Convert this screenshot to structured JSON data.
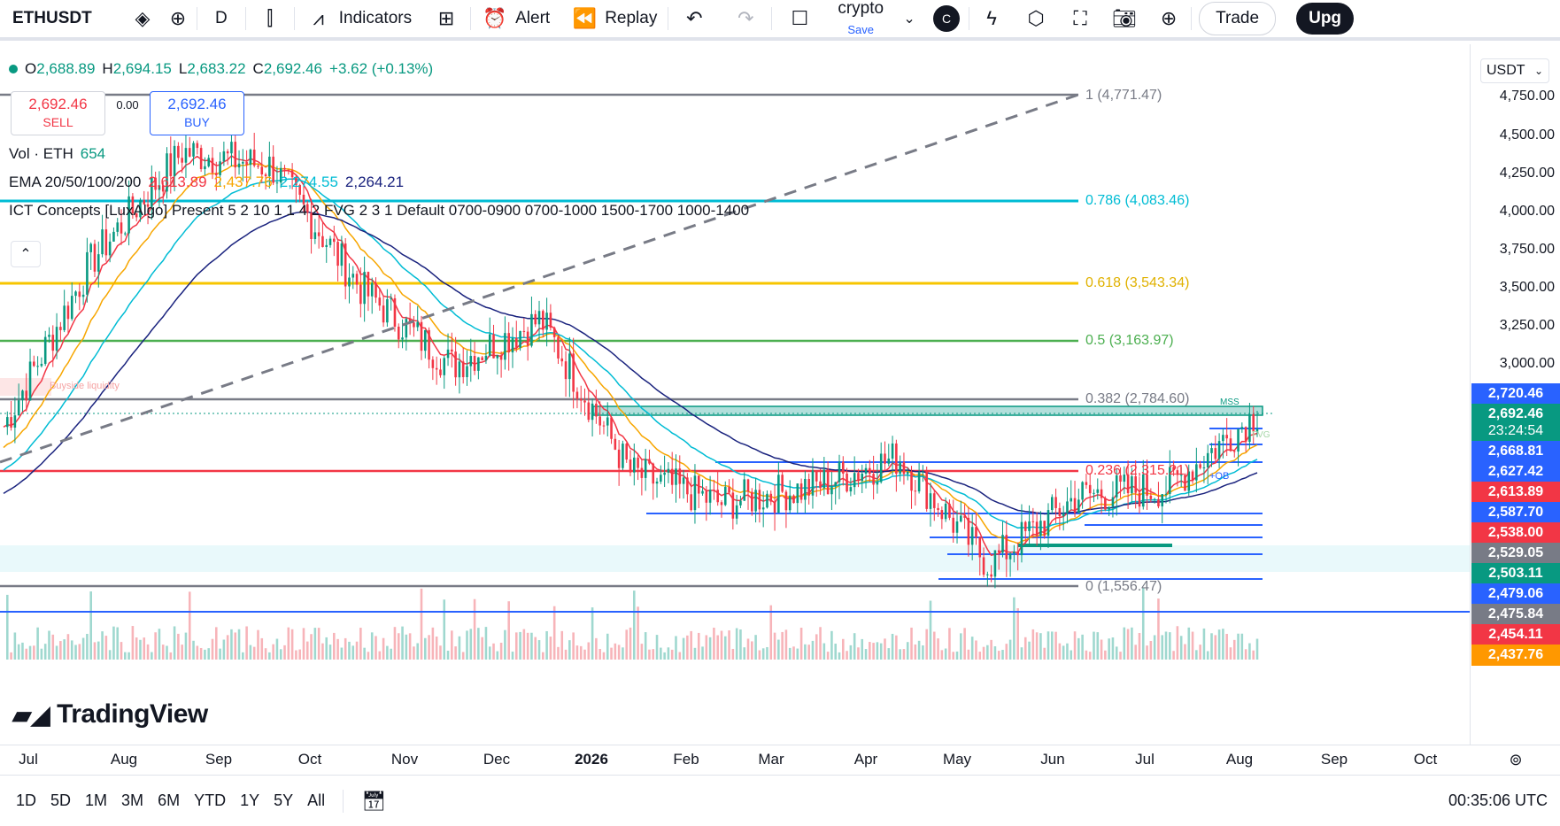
{
  "toolbar": {
    "symbol": "ETHUSDT",
    "interval": "D",
    "indicators_label": "Indicators",
    "alert_label": "Alert",
    "replay_label": "Replay",
    "layout_name": "crypto",
    "layout_save": "Save",
    "avatar_letter": "C",
    "trade_label": "Trade",
    "upgrade_label": "Upg"
  },
  "legend": {
    "ohlc": {
      "o_label": "O",
      "o": "2,688.89",
      "h_label": "H",
      "h": "2,694.15",
      "l_label": "L",
      "l": "2,683.22",
      "c_label": "C",
      "c": "2,692.46",
      "change": "+3.62 (+0.13%)"
    },
    "volume_label": "Vol · ETH",
    "volume_value": "654",
    "ema_label": "EMA 20/50/100/200",
    "ema_values": [
      "2,613.89",
      "2,437.76",
      "2,274.55",
      "2,264.21"
    ],
    "ema_colors": [
      "#f23645",
      "#f7a600",
      "#00bcd4",
      "#1a237e"
    ],
    "ict_label": "ICT Concepts [LuxAlgo] Present 5 2 10 1 1 4 2 FVG 2 3 1 Default 0700-0900 0700-1000 1500-1700 1000-1400"
  },
  "trade_panel": {
    "sell_price": "2,692.46",
    "sell_label": "SELL",
    "spread": "0.00",
    "buy_price": "2,692.46",
    "buy_label": "BUY"
  },
  "currency": "USDT",
  "price_axis": [
    "4,750.00",
    "4,500.00",
    "4,250.00",
    "4,000.00",
    "3,750.00",
    "3,500.00",
    "3,250.00",
    "3,000.00"
  ],
  "price_tags": [
    {
      "value": "2,720.46",
      "color": "#2962ff"
    },
    {
      "value": "2,692.46",
      "color": "#089981"
    },
    {
      "value": "23:24:54",
      "color": "#089981"
    },
    {
      "value": "2,668.81",
      "color": "#2962ff"
    },
    {
      "value": "2,627.42",
      "color": "#2962ff"
    },
    {
      "value": "2,613.89",
      "color": "#f23645"
    },
    {
      "value": "2,587.70",
      "color": "#2962ff"
    },
    {
      "value": "2,538.00",
      "color": "#f23645"
    },
    {
      "value": "2,529.05",
      "color": "#787b86"
    },
    {
      "value": "2,503.11",
      "color": "#089981"
    },
    {
      "value": "2,479.06",
      "color": "#2962ff"
    },
    {
      "value": "2,475.84",
      "color": "#787b86"
    },
    {
      "value": "2,454.11",
      "color": "#f23645"
    },
    {
      "value": "2,437.76",
      "color": "#ff9800"
    }
  ],
  "fib_levels": [
    {
      "label": "1 (4,771.47)",
      "color": "#787b86"
    },
    {
      "label": "0.786 (4,083.46)",
      "color": "#00bcd4"
    },
    {
      "label": "0.618 (3,543.34)",
      "color": "#f7c500"
    },
    {
      "label": "0.5 (3,163.97)",
      "color": "#4caf50"
    },
    {
      "label": "0.382 (2,784.60)",
      "color": "#787b86"
    },
    {
      "label": "0.236 (2,315.21)",
      "color": "#f23645"
    },
    {
      "label": "0 (1,556.47)",
      "color": "#787b86"
    }
  ],
  "annotations": {
    "buyside": "Buyside liquidity",
    "mss": "MSS",
    "fvg": "FVG",
    "ob": "+OB"
  },
  "time_axis": [
    "Jul",
    "Aug",
    "Sep",
    "Oct",
    "Nov",
    "Dec",
    "2026",
    "Feb",
    "Mar",
    "Apr",
    "May",
    "Jun",
    "Jul",
    "Aug",
    "Sep",
    "Oct"
  ],
  "ranges": [
    "1D",
    "5D",
    "1M",
    "3M",
    "6M",
    "YTD",
    "1Y",
    "5Y",
    "All"
  ],
  "clock": "00:35:06 UTC",
  "brand": "TradingView",
  "chart_data": {
    "type": "candlestick",
    "symbol": "ETHUSDT",
    "interval": "D",
    "x": [
      "Jul",
      "Aug",
      "Sep",
      "Oct",
      "Nov",
      "Dec",
      "Jan",
      "Feb",
      "Mar",
      "Apr",
      "May",
      "Jun",
      "Jul",
      "Aug",
      "Sep"
    ],
    "series": [
      {
        "name": "close",
        "values": [
          2600,
          3700,
          4400,
          4300,
          3500,
          3000,
          3300,
          2300,
          2100,
          2200,
          2400,
          1700,
          2150,
          2200,
          2692
        ]
      }
    ],
    "ylim": [
      1400,
      4900
    ]
  }
}
